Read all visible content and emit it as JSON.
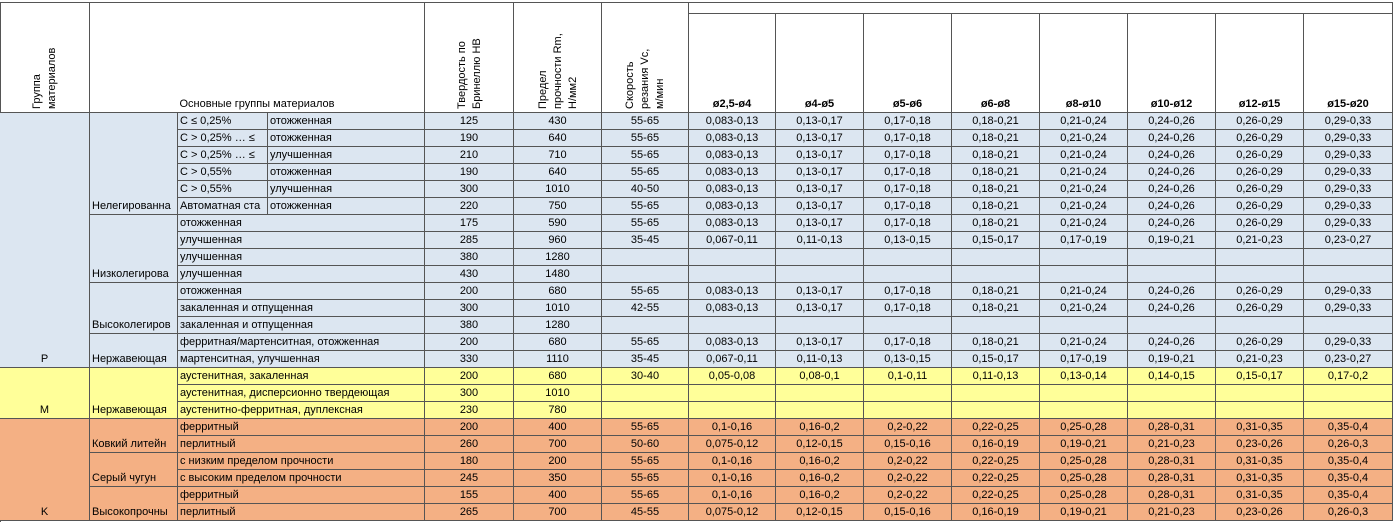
{
  "table": {
    "header": {
      "group": [
        "Группа",
        "материалов"
      ],
      "main_groups": "Основные группы материалов",
      "hardness": [
        "Твердость по",
        "Бринеллю НВ"
      ],
      "strength": [
        "Предел",
        "прочности Rm,",
        "Н/мм2"
      ],
      "speed": [
        "Скорость",
        "резания Vc,",
        "м/мин"
      ],
      "diameters": [
        "ø2,5-ø4",
        "ø4-ø5",
        "ø5-ø6",
        "ø6-ø8",
        "ø8-ø10",
        "ø10-ø12",
        "ø12-ø15",
        "ø15-ø20"
      ]
    },
    "sections": [
      {
        "group": "P",
        "color": "#dce6f1",
        "rows": [
          {
            "c": "С ≤ 0,25%",
            "d": "отожженная",
            "hb": 125,
            "rm": 430,
            "vc": "55-65",
            "f": [
              "0,083-0,13",
              "0,13-0,17",
              "0,17-0,18",
              "0,18-0,21",
              "0,21-0,24",
              "0,24-0,26",
              "0,26-0,29",
              "0,29-0,33"
            ]
          },
          {
            "c": "С > 0,25% … ≤",
            "d": "отожженная",
            "hb": 190,
            "rm": 640,
            "vc": "55-65",
            "f": [
              "0,083-0,13",
              "0,13-0,17",
              "0,17-0,18",
              "0,18-0,21",
              "0,21-0,24",
              "0,24-0,26",
              "0,26-0,29",
              "0,29-0,33"
            ]
          },
          {
            "c": "С > 0,25% … ≤",
            "d": "улучшенная",
            "hb": 210,
            "rm": 710,
            "vc": "55-65",
            "f": [
              "0,083-0,13",
              "0,13-0,17",
              "0,17-0,18",
              "0,18-0,21",
              "0,21-0,24",
              "0,24-0,26",
              "0,26-0,29",
              "0,29-0,33"
            ]
          },
          {
            "c": "С > 0,55%",
            "d": "отожженная",
            "hb": 190,
            "rm": 640,
            "vc": "55-65",
            "f": [
              "0,083-0,13",
              "0,13-0,17",
              "0,17-0,18",
              "0,18-0,21",
              "0,21-0,24",
              "0,24-0,26",
              "0,26-0,29",
              "0,29-0,33"
            ]
          },
          {
            "c": "С > 0,55%",
            "d": "улучшенная",
            "hb": 300,
            "rm": 1010,
            "vc": "40-50",
            "f": [
              "0,083-0,13",
              "0,13-0,17",
              "0,17-0,18",
              "0,18-0,21",
              "0,21-0,24",
              "0,24-0,26",
              "0,26-0,29",
              "0,29-0,33"
            ]
          },
          {
            "b": "Нелегированна",
            "c": "Автоматная ста",
            "d": "отожженная",
            "hb": 220,
            "rm": 750,
            "vc": "55-65",
            "f": [
              "0,083-0,13",
              "0,13-0,17",
              "0,17-0,18",
              "0,18-0,21",
              "0,21-0,24",
              "0,24-0,26",
              "0,26-0,29",
              "0,29-0,33"
            ]
          },
          {
            "c": "отожженная",
            "hb": 175,
            "rm": 590,
            "vc": "55-65",
            "f": [
              "0,083-0,13",
              "0,13-0,17",
              "0,17-0,18",
              "0,18-0,21",
              "0,21-0,24",
              "0,24-0,26",
              "0,26-0,29",
              "0,29-0,33"
            ]
          },
          {
            "c": "улучшенная",
            "hb": 285,
            "rm": 960,
            "vc": "35-45",
            "f": [
              "0,067-0,11",
              "0,11-0,13",
              "0,13-0,15",
              "0,15-0,17",
              "0,17-0,19",
              "0,19-0,21",
              "0,21-0,23",
              "0,23-0,27"
            ]
          },
          {
            "c": "улучшенная",
            "hb": 380,
            "rm": 1280
          },
          {
            "b": "Низколегирова",
            "c": "улучшенная",
            "hb": 430,
            "rm": 1480
          },
          {
            "c": "отожженная",
            "hb": 200,
            "rm": 680,
            "vc": "55-65",
            "f": [
              "0,083-0,13",
              "0,13-0,17",
              "0,17-0,18",
              "0,18-0,21",
              "0,21-0,24",
              "0,24-0,26",
              "0,26-0,29",
              "0,29-0,33"
            ]
          },
          {
            "c": "закаленная и отпущенная",
            "hb": 300,
            "rm": 1010,
            "vc": "42-55",
            "f": [
              "0,083-0,13",
              "0,13-0,17",
              "0,17-0,18",
              "0,18-0,21",
              "0,21-0,24",
              "0,24-0,26",
              "0,26-0,29",
              "0,29-0,33"
            ]
          },
          {
            "b": "Высоколегиров",
            "c": "закаленная и отпущенная",
            "hb": 380,
            "rm": 1280
          },
          {
            "c": "ферритная/мартенситная, отожженная",
            "hb": 200,
            "rm": 680,
            "vc": "55-65",
            "f": [
              "0,083-0,13",
              "0,13-0,17",
              "0,17-0,18",
              "0,18-0,21",
              "0,21-0,24",
              "0,24-0,26",
              "0,26-0,29",
              "0,29-0,33"
            ]
          },
          {
            "b": "Нержавеющая",
            "c": "мартенситная, улучшенная",
            "hb": 330,
            "rm": 1110,
            "vc": "35-45",
            "f": [
              "0,067-0,11",
              "0,11-0,13",
              "0,13-0,15",
              "0,15-0,17",
              "0,17-0,19",
              "0,19-0,21",
              "0,21-0,23",
              "0,23-0,27"
            ]
          }
        ]
      },
      {
        "group": "M",
        "color": "#ffff99",
        "rows": [
          {
            "c": "аустенитная, закаленная",
            "hb": 200,
            "rm": 680,
            "vc": "30-40",
            "f": [
              "0,05-0,08",
              "0,08-0,1",
              "0,1-0,11",
              "0,11-0,13",
              "0,13-0,14",
              "0,14-0,15",
              "0,15-0,17",
              "0,17-0,2"
            ]
          },
          {
            "c": "аустенитная, дисперсионно твердеющая",
            "hb": 300,
            "rm": 1010
          },
          {
            "b": "Нержавеющая",
            "c": "аустенитно-ферритная, дуплексная",
            "hb": 230,
            "rm": 780
          }
        ]
      },
      {
        "group": "K",
        "color": "#f4b084",
        "rows": [
          {
            "c": "ферритный",
            "hb": 200,
            "rm": 400,
            "vc": "55-65",
            "f": [
              "0,1-0,16",
              "0,16-0,2",
              "0,2-0,22",
              "0,22-0,25",
              "0,25-0,28",
              "0,28-0,31",
              "0,31-0,35",
              "0,35-0,4"
            ]
          },
          {
            "b": "Ковкий литейн",
            "c": "перлитный",
            "hb": 260,
            "rm": 700,
            "vc": "50-60",
            "f": [
              "0,075-0,12",
              "0,12-0,15",
              "0,15-0,16",
              "0,16-0,19",
              "0,19-0,21",
              "0,21-0,23",
              "0,23-0,26",
              "0,26-0,3"
            ]
          },
          {
            "c": "с низким пределом прочности",
            "hb": 180,
            "rm": 200,
            "vc": "55-65",
            "f": [
              "0,1-0,16",
              "0,16-0,2",
              "0,2-0,22",
              "0,22-0,25",
              "0,25-0,28",
              "0,28-0,31",
              "0,31-0,35",
              "0,35-0,4"
            ]
          },
          {
            "b": "Серый чугун",
            "c": "с высоким пределом прочности",
            "hb": 245,
            "rm": 350,
            "vc": "55-65",
            "f": [
              "0,1-0,16",
              "0,16-0,2",
              "0,2-0,22",
              "0,22-0,25",
              "0,25-0,28",
              "0,28-0,31",
              "0,31-0,35",
              "0,35-0,4"
            ]
          },
          {
            "c": "ферритный",
            "hb": 155,
            "rm": 400,
            "vc": "55-65",
            "f": [
              "0,1-0,16",
              "0,16-0,2",
              "0,2-0,22",
              "0,22-0,25",
              "0,25-0,28",
              "0,28-0,31",
              "0,31-0,35",
              "0,35-0,4"
            ]
          },
          {
            "b": "Высокопрочны",
            "c": "перлитный",
            "hb": 265,
            "rm": 700,
            "vc": "45-55",
            "f": [
              "0,075-0,12",
              "0,12-0,15",
              "0,15-0,16",
              "0,16-0,19",
              "0,19-0,21",
              "0,21-0,23",
              "0,23-0,26",
              "0,26-0,3"
            ]
          }
        ]
      }
    ]
  }
}
